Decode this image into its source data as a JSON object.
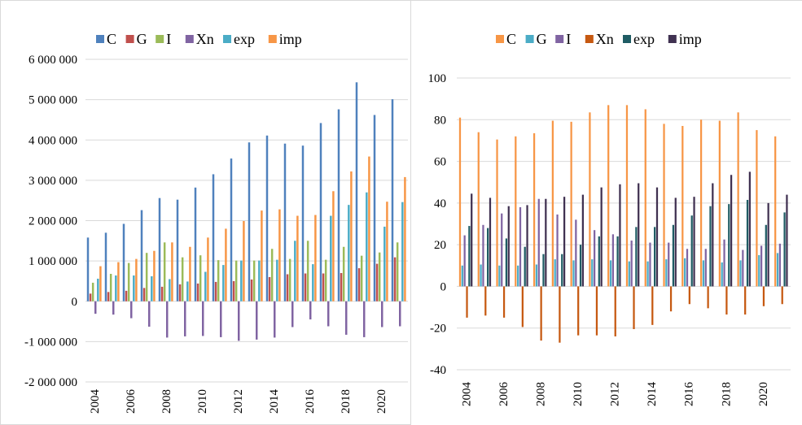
{
  "colors": {
    "left": {
      "C": "#4f81bd",
      "G": "#c0504d",
      "I": "#9bbb59",
      "Xn": "#8064a2",
      "exp": "#4bacc6",
      "imp": "#f79646"
    },
    "right": {
      "C": "#f79646",
      "G": "#4bacc6",
      "I": "#8064a2",
      "Xn": "#c65911",
      "exp": "#1f5c64",
      "imp": "#403151"
    },
    "grid": "#d9d9d9"
  },
  "chart_data": [
    {
      "type": "bar",
      "categories": [
        "2004",
        "2005",
        "2006",
        "2007",
        "2008",
        "2009",
        "2010",
        "2011",
        "2012",
        "2013",
        "2014",
        "2015",
        "2016",
        "2017",
        "2018",
        "2019",
        "2020",
        "2021"
      ],
      "x_tick_labels": [
        "2004",
        "2006",
        "2008",
        "2010",
        "2012",
        "2014",
        "2016",
        "2018",
        "2020"
      ],
      "y_tick_labels": [
        "6 000 000",
        "5 000 000",
        "4 000 000",
        "3 000 000",
        "2 000 000",
        "1 000 000",
        "0",
        "-1 000 000",
        "-2 000 000"
      ],
      "ylim": [
        -2000000,
        6000000
      ],
      "legend_position": "top",
      "grid": true,
      "series": [
        {
          "name": "C",
          "values": [
            1580000,
            1700000,
            1920000,
            2260000,
            2560000,
            2520000,
            2820000,
            3150000,
            3540000,
            3940000,
            4110000,
            3910000,
            3860000,
            4420000,
            4760000,
            5430000,
            4620000,
            5010000
          ]
        },
        {
          "name": "G",
          "values": [
            190000,
            230000,
            260000,
            330000,
            360000,
            420000,
            440000,
            480000,
            500000,
            540000,
            600000,
            670000,
            690000,
            690000,
            700000,
            820000,
            930000,
            1090000
          ]
        },
        {
          "name": "I",
          "values": [
            460000,
            680000,
            950000,
            1200000,
            1460000,
            1090000,
            1140000,
            1020000,
            1010000,
            1010000,
            1300000,
            1050000,
            1500000,
            1030000,
            1350000,
            1130000,
            1210000,
            1460000
          ]
        },
        {
          "name": "Xn",
          "values": [
            -310000,
            -330000,
            -420000,
            -630000,
            -900000,
            -870000,
            -860000,
            -890000,
            -980000,
            -950000,
            -900000,
            -640000,
            -450000,
            -620000,
            -830000,
            -890000,
            -640000,
            -620000
          ]
        },
        {
          "name": "exp",
          "values": [
            560000,
            640000,
            640000,
            620000,
            550000,
            490000,
            730000,
            900000,
            1010000,
            1010000,
            1030000,
            1500000,
            920000,
            2120000,
            2390000,
            2700000,
            1850000,
            2460000
          ]
        },
        {
          "name": "imp",
          "values": [
            870000,
            970000,
            1050000,
            1250000,
            1460000,
            1350000,
            1580000,
            1800000,
            1990000,
            2250000,
            2280000,
            2120000,
            2140000,
            2730000,
            3220000,
            3590000,
            2470000,
            3080000
          ]
        }
      ]
    },
    {
      "type": "bar",
      "categories": [
        "2004",
        "2005",
        "2006",
        "2007",
        "2008",
        "2009",
        "2010",
        "2011",
        "2012",
        "2013",
        "2014",
        "2015",
        "2016",
        "2017",
        "2018",
        "2019",
        "2020",
        "2021"
      ],
      "x_tick_labels": [
        "2004",
        "2006",
        "2008",
        "2010",
        "2012",
        "2014",
        "2016",
        "2018",
        "2020"
      ],
      "y_tick_labels": [
        "100",
        "80",
        "60",
        "40",
        "20",
        "0",
        "-20",
        "-40"
      ],
      "ylim": [
        -40,
        100
      ],
      "legend_position": "top",
      "grid": true,
      "series": [
        {
          "name": "C",
          "values": [
            81,
            74,
            70.5,
            72,
            73.5,
            79.5,
            79,
            83.5,
            87,
            87,
            85,
            78,
            77,
            80,
            79.5,
            83.5,
            75,
            72
          ]
        },
        {
          "name": "G",
          "values": [
            10,
            10.5,
            10,
            10,
            10.5,
            13,
            12.5,
            13,
            12.5,
            12,
            12,
            13,
            13.5,
            12.5,
            11.5,
            12.5,
            15,
            16
          ]
        },
        {
          "name": "I",
          "values": [
            24.5,
            29.5,
            35,
            38,
            42,
            34.5,
            32,
            27,
            25,
            22,
            21,
            21,
            18,
            18,
            22.5,
            17.5,
            19.5,
            20.5
          ]
        },
        {
          "name": "Xn",
          "values": [
            -15,
            -14,
            -15,
            -19.5,
            -26,
            -27,
            -23.5,
            -23.5,
            -24,
            -20.5,
            -18.5,
            -12,
            -8.5,
            -10.5,
            -13.5,
            -13.5,
            -9.5,
            -8.5
          ]
        },
        {
          "name": "exp",
          "values": [
            29,
            28,
            23,
            19,
            15.5,
            15.5,
            20,
            24,
            24,
            28.5,
            28.5,
            29.5,
            34,
            38.5,
            39.5,
            41.5,
            29.5,
            35.5
          ]
        },
        {
          "name": "imp",
          "values": [
            44.5,
            42.5,
            38.5,
            39,
            42,
            43,
            44,
            47.5,
            49,
            49.5,
            47.5,
            42.5,
            43,
            49.5,
            53.5,
            55,
            40,
            44
          ]
        }
      ]
    }
  ]
}
